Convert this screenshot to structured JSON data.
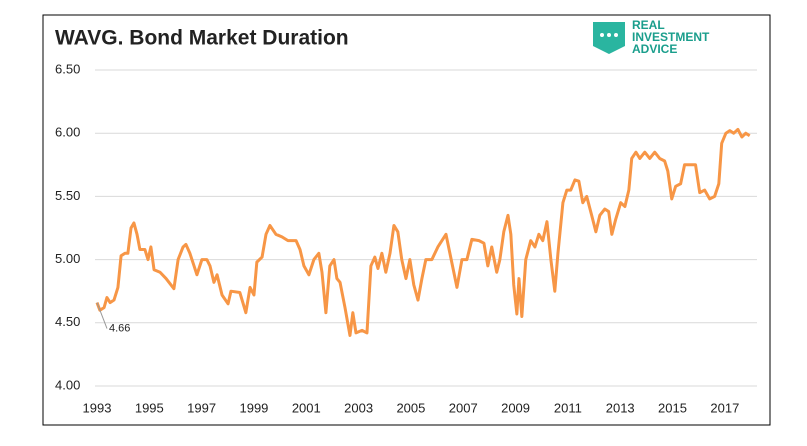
{
  "chart_data": {
    "type": "line",
    "title": "WAVG. Bond Market Duration",
    "logo": [
      "REAL",
      "INVESTMENT",
      "ADVICE"
    ],
    "color": "#f79646",
    "grid": true,
    "labeled_points": [
      0,
      154
    ],
    "xlim": [
      1993,
      2018
    ],
    "xticks": [
      1993,
      1995,
      1997,
      1999,
      2001,
      2003,
      2005,
      2007,
      2009,
      2011,
      2013,
      2015,
      2017
    ],
    "ylim": [
      4,
      6.5
    ],
    "yticks": [
      {
        "value": 4,
        "label": "4.00"
      },
      {
        "value": 4.5,
        "label": "4.50"
      },
      {
        "value": 5,
        "label": "5.00"
      },
      {
        "value": 5.5,
        "label": "5.50"
      },
      {
        "value": 6,
        "label": "6.00"
      },
      {
        "value": 6.5,
        "label": "6.50"
      }
    ],
    "x": [
      1993.0,
      1993.11,
      1993.27,
      1993.38,
      1993.5,
      1993.65,
      1993.8,
      1993.92,
      1994.07,
      1994.18,
      1994.3,
      1994.41,
      1994.53,
      1994.64,
      1994.83,
      1994.95,
      1995.06,
      1995.18,
      1995.41,
      1995.64,
      1995.94,
      1996.1,
      1996.29,
      1996.4,
      1996.55,
      1996.71,
      1996.82,
      1997.01,
      1997.2,
      1997.32,
      1997.47,
      1997.59,
      1997.78,
      1998.01,
      1998.12,
      1998.46,
      1998.69,
      1998.85,
      1999.0,
      1999.11,
      1999.31,
      1999.46,
      1999.61,
      1999.84,
      2000.07,
      2000.3,
      2000.61,
      2000.76,
      2000.91,
      2001.1,
      2001.29,
      2001.48,
      2001.6,
      2001.75,
      2001.9,
      2002.06,
      2002.17,
      2002.29,
      2002.48,
      2002.67,
      2002.78,
      2002.9,
      2003.13,
      2003.32,
      2003.47,
      2003.62,
      2003.74,
      2003.89,
      2004.04,
      2004.2,
      2004.35,
      2004.5,
      2004.65,
      2004.81,
      2004.96,
      2005.11,
      2005.27,
      2005.42,
      2005.57,
      2005.8,
      2006.03,
      2006.34,
      2006.49,
      2006.76,
      2006.95,
      2007.14,
      2007.33,
      2007.6,
      2007.79,
      2007.94,
      2008.09,
      2008.28,
      2008.4,
      2008.55,
      2008.71,
      2008.82,
      2008.93,
      2009.05,
      2009.13,
      2009.24,
      2009.39,
      2009.58,
      2009.74,
      2009.89,
      2010.04,
      2010.2,
      2010.35,
      2010.5,
      2010.62,
      2010.81,
      2010.96,
      2011.11,
      2011.27,
      2011.42,
      2011.57,
      2011.72,
      2011.91,
      2012.07,
      2012.22,
      2012.41,
      2012.56,
      2012.68,
      2012.83,
      2013.02,
      2013.18,
      2013.33,
      2013.44,
      2013.6,
      2013.75,
      2013.94,
      2014.13,
      2014.32,
      2014.51,
      2014.7,
      2014.82,
      2014.97,
      2015.12,
      2015.31,
      2015.46,
      2015.65,
      2015.88,
      2016.04,
      2016.23,
      2016.42,
      2016.61,
      2016.77,
      2016.88,
      2017.04,
      2017.19,
      2017.34,
      2017.5,
      2017.65,
      2017.8,
      2017.95
    ],
    "values": [
      4.66,
      4.6,
      4.62,
      4.7,
      4.66,
      4.68,
      4.78,
      5.03,
      5.05,
      5.05,
      5.25,
      5.29,
      5.2,
      5.08,
      5.08,
      5.0,
      5.1,
      4.92,
      4.9,
      4.85,
      4.77,
      5.0,
      5.1,
      5.12,
      5.05,
      4.95,
      4.88,
      5.0,
      5.0,
      4.95,
      4.82,
      4.88,
      4.72,
      4.65,
      4.75,
      4.74,
      4.58,
      4.78,
      4.72,
      4.98,
      5.02,
      5.2,
      5.27,
      5.2,
      5.18,
      5.15,
      5.15,
      5.08,
      4.95,
      4.88,
      5.0,
      5.05,
      4.9,
      4.58,
      4.95,
      5.0,
      4.85,
      4.82,
      4.62,
      4.4,
      4.58,
      4.42,
      4.44,
      4.42,
      4.95,
      5.02,
      4.93,
      5.05,
      4.9,
      5.05,
      5.27,
      5.22,
      5.0,
      4.85,
      5.0,
      4.8,
      4.68,
      4.85,
      5.0,
      5.0,
      5.1,
      5.2,
      5.05,
      4.78,
      5.0,
      5.0,
      5.16,
      5.15,
      5.13,
      4.95,
      5.1,
      4.9,
      5.0,
      5.22,
      5.35,
      5.2,
      4.8,
      4.57,
      4.85,
      4.55,
      5.0,
      5.15,
      5.1,
      5.2,
      5.15,
      5.3,
      5.0,
      4.75,
      5.05,
      5.45,
      5.55,
      5.55,
      5.63,
      5.62,
      5.45,
      5.5,
      5.35,
      5.22,
      5.35,
      5.4,
      5.38,
      5.2,
      5.32,
      5.45,
      5.42,
      5.55,
      5.8,
      5.85,
      5.8,
      5.85,
      5.8,
      5.85,
      5.8,
      5.78,
      5.7,
      5.48,
      5.58,
      5.6,
      5.75,
      5.75,
      5.75,
      5.53,
      5.55,
      5.48,
      5.5,
      5.6,
      5.92,
      6.0,
      6.02,
      6.0,
      6.03,
      5.97,
      6.0,
      5.98
    ]
  }
}
